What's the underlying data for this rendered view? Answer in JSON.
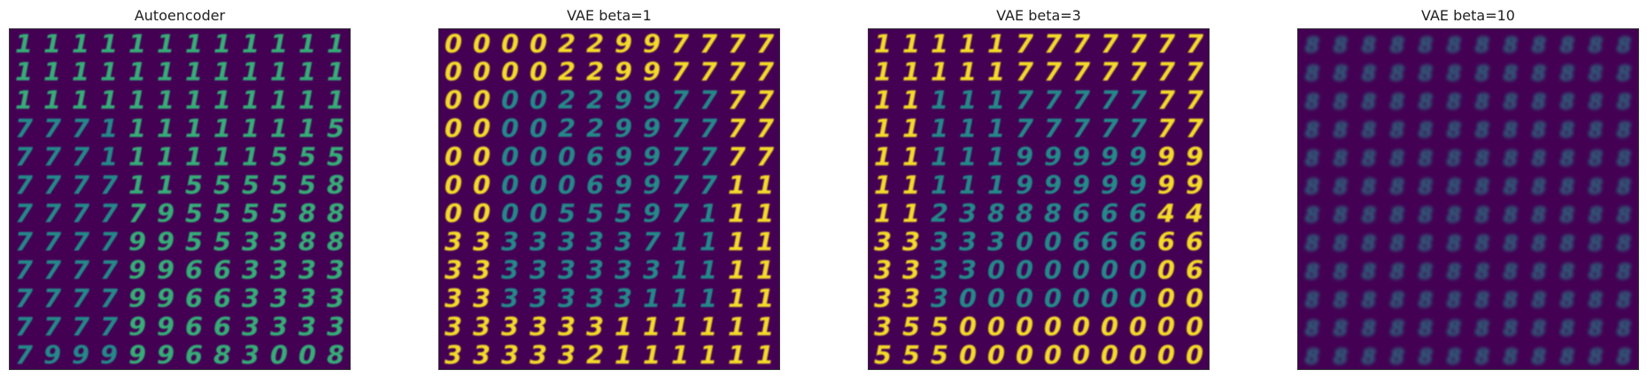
{
  "figure": {
    "colormap": {
      "background": "#440154",
      "mid": "#21918c",
      "high": "#fde725"
    },
    "grid_size": 12,
    "panels": [
      {
        "title": "Autoencoder",
        "grid": [
          "111111111111",
          "111111111111",
          "111111111111",
          "777111111115",
          "777111111555",
          "777711555558",
          "777779555588",
          "777799553388",
          "777799663333",
          "777799663333",
          "777799663333",
          "799999683008"
        ]
      },
      {
        "title": "VAE beta=1",
        "grid": [
          "000022997777",
          "000022997777",
          "000022997777",
          "000022997777",
          "000006997777",
          "000006997711",
          "000055597111",
          "333333371111",
          "333333331111",
          "333333311111",
          "333333111111",
          "333332111111"
        ]
      },
      {
        "title": "VAE beta=3",
        "grid": [
          "111117777777",
          "111117777777",
          "111117777777",
          "111117777777",
          "111119999999",
          "111119999999",
          "112388866644",
          "333330066666",
          "333300000006",
          "333000000000",
          "355000000000",
          "555000000000"
        ]
      },
      {
        "title": "VAE beta=10",
        "grid": [
          "888888888888",
          "888888888888",
          "888888888888",
          "888888888888",
          "888888888888",
          "888888888888",
          "888888888888",
          "888888888888",
          "888888888888",
          "888888888888",
          "888888888888",
          "888888888888"
        ]
      }
    ]
  }
}
